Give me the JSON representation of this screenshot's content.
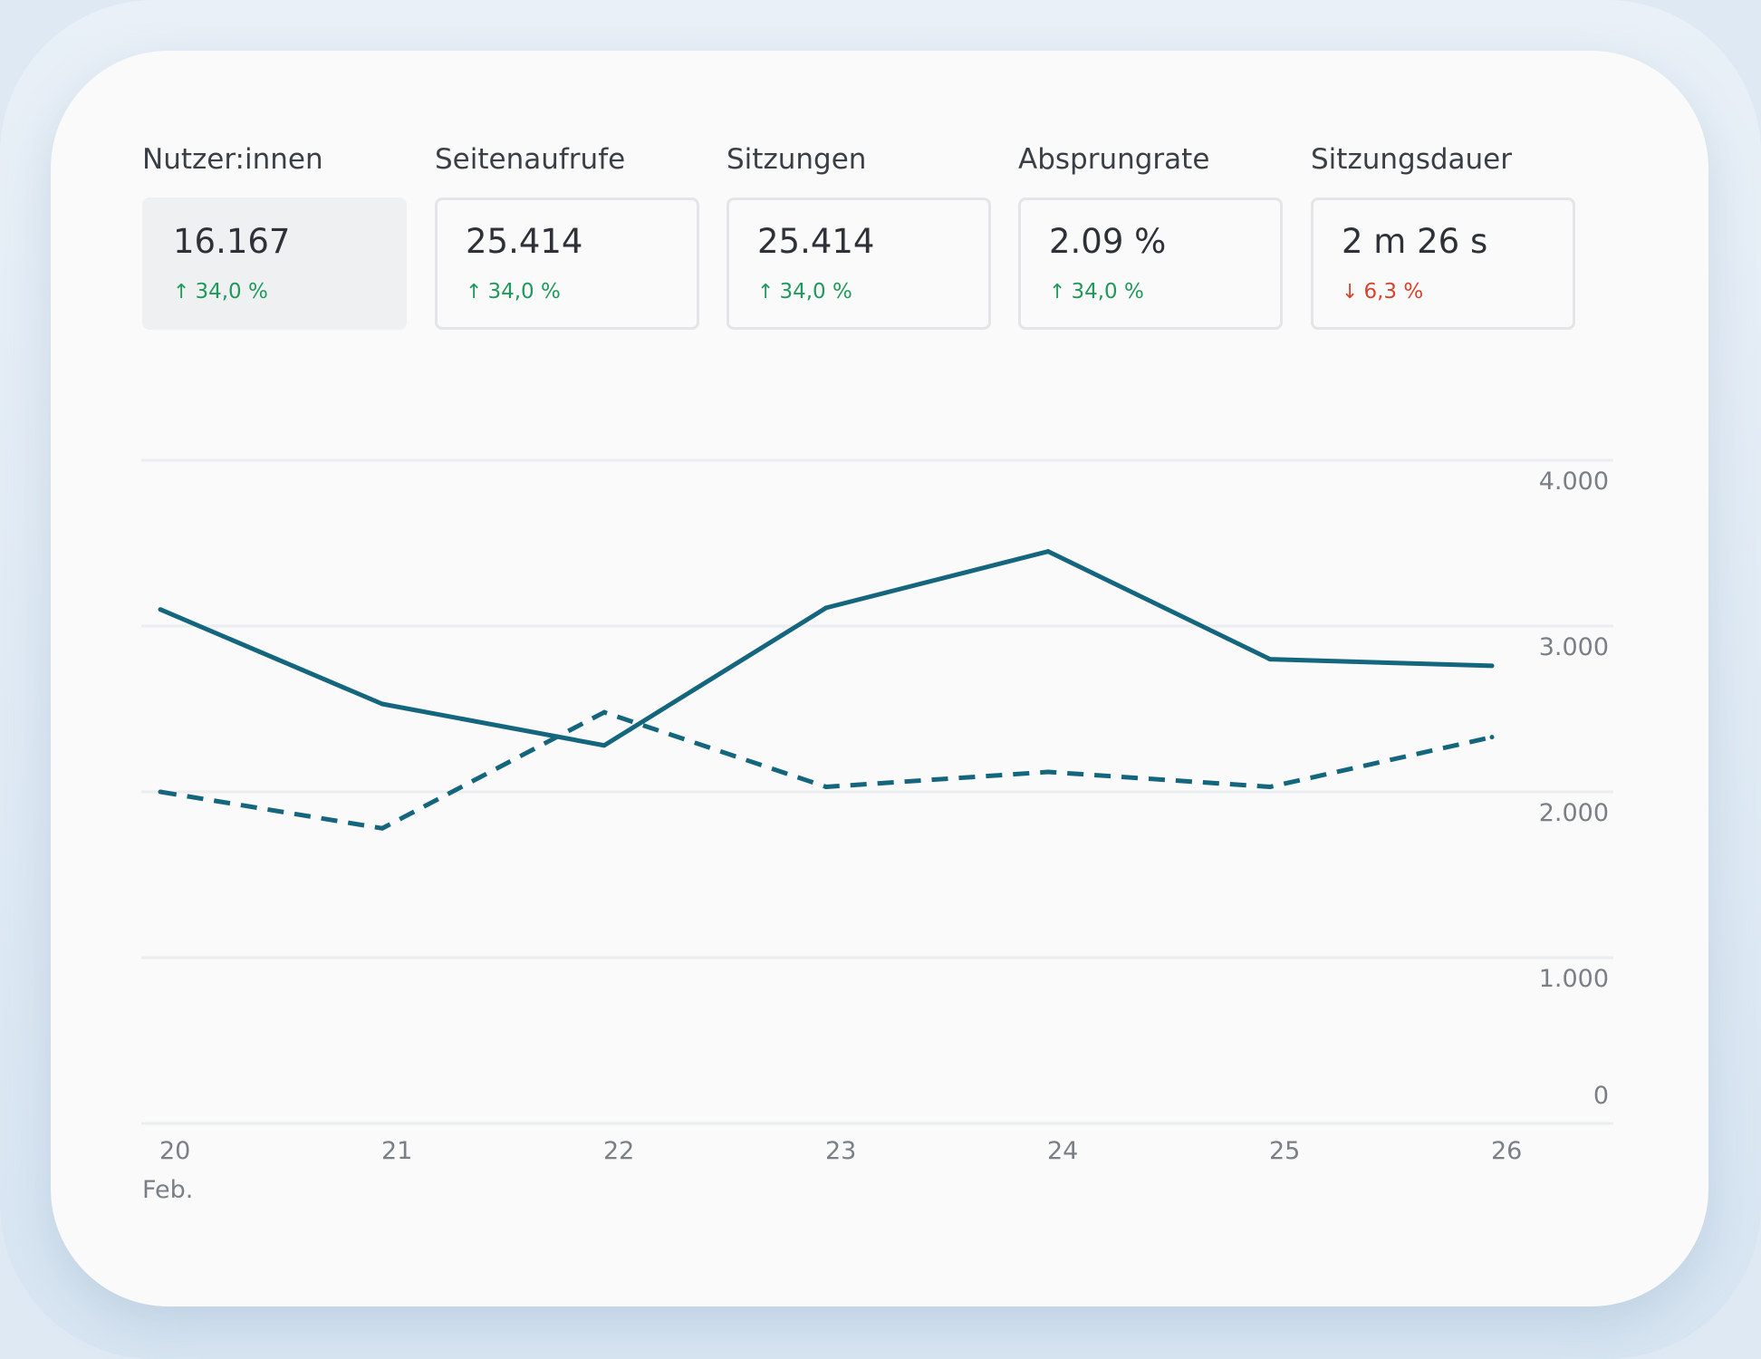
{
  "metrics": [
    {
      "title": "Nutzer:innen",
      "value": "16.167",
      "change": "34,0 %",
      "trend": "up",
      "active": true
    },
    {
      "title": "Seitenaufrufe",
      "value": "25.414",
      "change": "34,0 %",
      "trend": "up",
      "active": false
    },
    {
      "title": "Sitzungen",
      "value": "25.414",
      "change": "34,0 %",
      "trend": "up",
      "active": false
    },
    {
      "title": "Absprungrate",
      "value": "2.09 %",
      "change": "34,0 %",
      "trend": "up",
      "active": false
    },
    {
      "title": "Sitzungsdauer",
      "value": "2 m 26 s",
      "change": "6,3 %",
      "trend": "down",
      "active": false
    }
  ],
  "colors": {
    "line": "#14667e",
    "up": "#1f9a5a",
    "down": "#d9432d",
    "grid": "#ebedef"
  },
  "icons": {
    "up": "arrow-up-icon",
    "down": "arrow-down-icon"
  },
  "chart_data": {
    "type": "line",
    "x": [
      "20",
      "21",
      "22",
      "23",
      "24",
      "25",
      "26"
    ],
    "x_sublabel": "Feb.",
    "ylim": [
      0,
      4000
    ],
    "yticks": [
      0,
      1000,
      2000,
      3000,
      4000
    ],
    "ytick_labels": [
      "0",
      "1.000",
      "2.000",
      "3.000",
      "4.000"
    ],
    "grid": true,
    "series": [
      {
        "style": "solid",
        "values": [
          3100,
          2530,
          2280,
          3110,
          3450,
          2800,
          2760
        ]
      },
      {
        "style": "dashed",
        "values": [
          2000,
          1780,
          2480,
          2030,
          2120,
          2030,
          2330
        ]
      }
    ]
  }
}
